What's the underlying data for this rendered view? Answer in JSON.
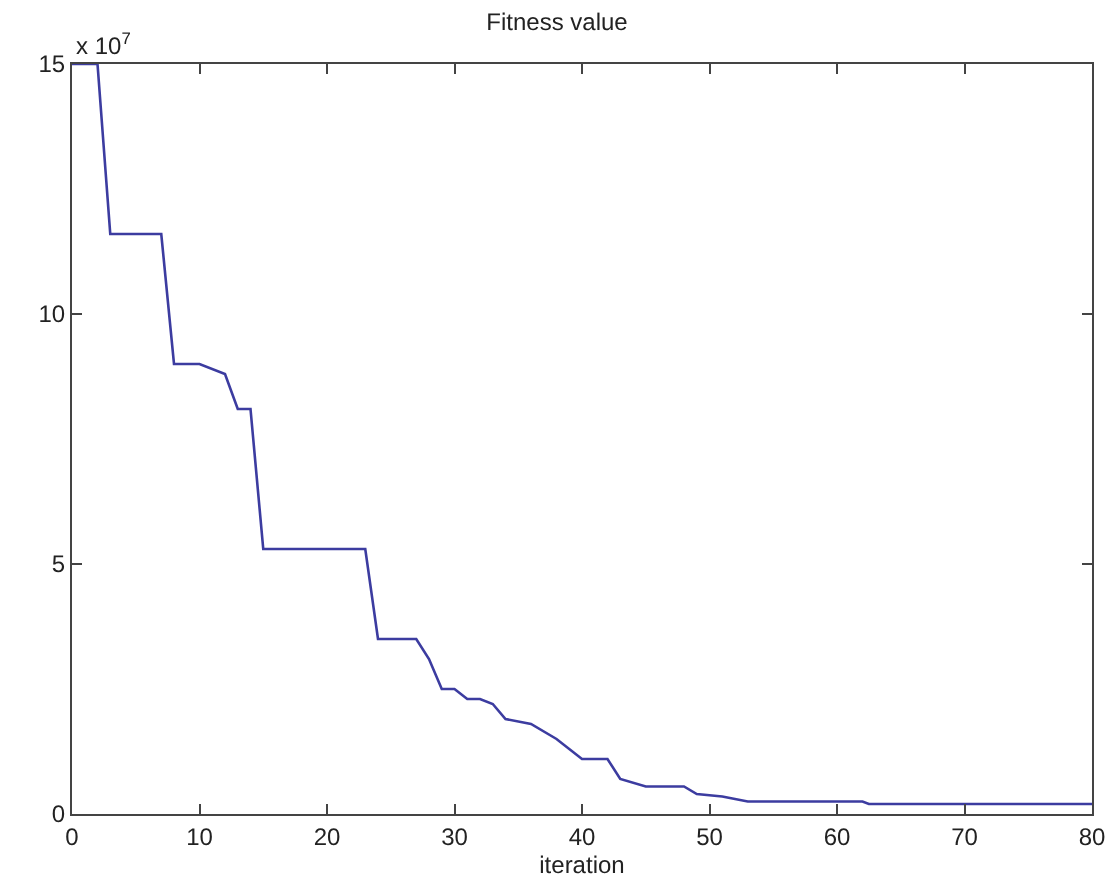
{
  "chart_data": {
    "type": "line",
    "title": "Fitness value",
    "xlabel": "iteration",
    "annotations": [
      "x 10$^{7}$"
    ],
    "x": [
      0,
      2,
      3,
      7,
      8,
      10,
      12,
      13,
      14,
      15,
      23,
      24,
      27,
      28,
      29,
      30,
      31,
      32,
      33,
      34,
      36,
      38,
      40,
      42,
      43,
      45,
      48,
      49,
      51,
      53,
      62,
      62.5,
      80
    ],
    "series": [
      {
        "color": "#3c3ca0",
        "values": [
          15,
          15,
          11.6,
          11.6,
          9,
          9,
          8.8,
          8.1,
          8.1,
          5.3,
          5.3,
          3.5,
          3.5,
          3.1,
          2.5,
          2.5,
          2.3,
          2.3,
          2.2,
          1.9,
          1.8,
          1.5,
          1.1,
          1.1,
          0.7,
          0.55,
          0.55,
          0.4,
          0.35,
          0.25,
          0.25,
          0.2,
          0.2
        ]
      }
    ],
    "xlim": [
      0,
      80
    ],
    "xticks": [
      0,
      10,
      20,
      30,
      40,
      50,
      60,
      70,
      80
    ],
    "ylim": [
      0,
      15
    ],
    "yticks": [
      0,
      5,
      10,
      15
    ],
    "grid": false,
    "legend": false,
    "marker": "none",
    "line_style": "solid"
  }
}
